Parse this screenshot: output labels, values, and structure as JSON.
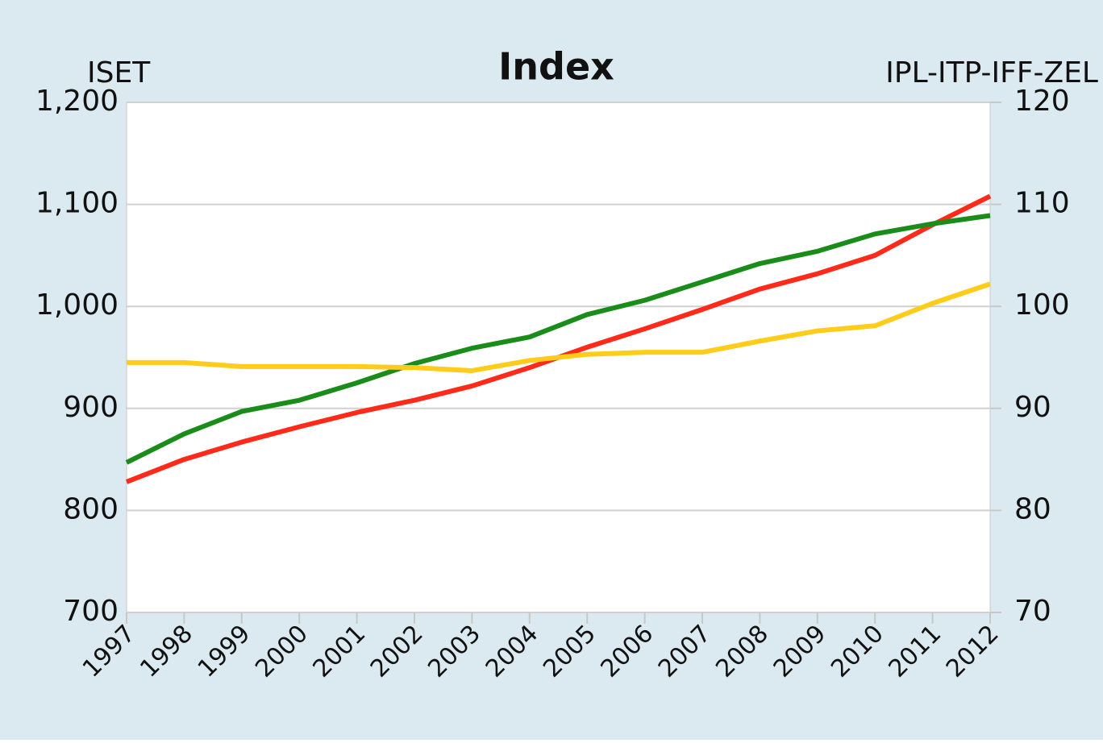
{
  "chart_data": {
    "type": "line",
    "title": "Index",
    "y_label": "ISET",
    "y2_label": "IPL-ITP-IFF-ZEL",
    "x": [
      "1997",
      "1998",
      "1999",
      "2000",
      "2001",
      "2002",
      "2003",
      "2004",
      "2005",
      "2006",
      "2007",
      "2008",
      "2009",
      "2010",
      "2011",
      "2012"
    ],
    "series": [
      {
        "color": "#ff2a1a",
        "values": [
          828,
          850,
          867,
          882,
          896,
          908,
          922,
          940,
          960,
          978,
          997,
          1017,
          1032,
          1050,
          1080,
          1108
        ]
      },
      {
        "color": "#1a8c1a",
        "axis": "y2",
        "values": [
          84.7,
          87.5,
          89.7,
          90.8,
          92.5,
          94.4,
          95.9,
          97.0,
          99.2,
          100.6,
          102.4,
          104.2,
          105.4,
          107.1,
          108.1,
          108.9
        ]
      },
      {
        "color": "#ffcc1a",
        "axis": "y2",
        "values": [
          94.5,
          94.5,
          94.1,
          94.1,
          94.1,
          94.0,
          93.7,
          94.7,
          95.3,
          95.5,
          95.5,
          96.6,
          97.6,
          98.1,
          100.3,
          102.2
        ]
      }
    ],
    "ylim": [
      700,
      1200
    ],
    "yticks": [
      700,
      800,
      900,
      {
        "value": 1000,
        "label": "1,000"
      },
      {
        "value": 1100,
        "label": "1,100"
      },
      {
        "value": 1200,
        "label": "1,200"
      }
    ],
    "y2lim": [
      70,
      120
    ],
    "y2ticks": [
      70,
      80,
      90,
      100,
      110,
      120
    ],
    "grid": true
  }
}
